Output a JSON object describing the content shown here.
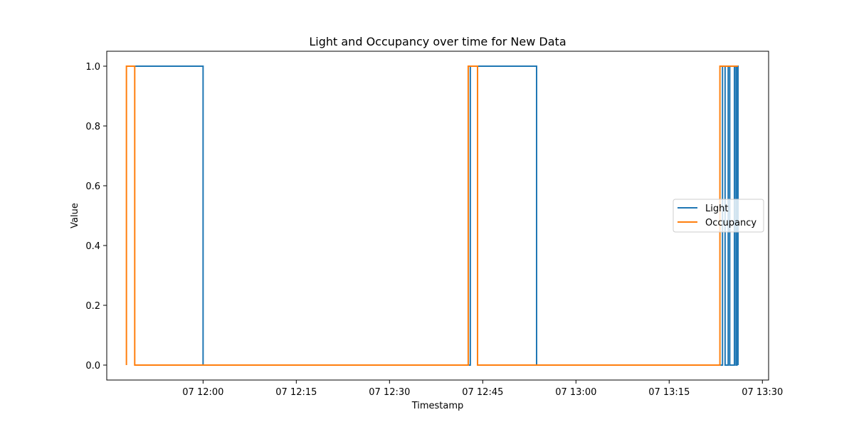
{
  "chart_data": {
    "type": "line",
    "title": "Light and Occupancy over time for New Data",
    "xlabel": "Timestamp",
    "ylabel": "Value",
    "xlim": [
      "2015-02-07 11:44:30",
      "2015-02-07 13:31:00"
    ],
    "ylim": [
      -0.05,
      1.05
    ],
    "x_ticks": [
      {
        "value": "2015-02-07 12:00:00",
        "label": "07 12:00"
      },
      {
        "value": "2015-02-07 12:15:00",
        "label": "07 12:15"
      },
      {
        "value": "2015-02-07 12:30:00",
        "label": "07 12:30"
      },
      {
        "value": "2015-02-07 12:45:00",
        "label": "07 12:45"
      },
      {
        "value": "2015-02-07 13:00:00",
        "label": "07 13:00"
      },
      {
        "value": "2015-02-07 13:15:00",
        "label": "07 13:15"
      },
      {
        "value": "2015-02-07 13:30:00",
        "label": "07 13:30"
      }
    ],
    "y_ticks": [
      0.0,
      0.2,
      0.4,
      0.6,
      0.8,
      1.0
    ],
    "y_tick_labels": [
      "0.0",
      "0.2",
      "0.4",
      "0.6",
      "0.8",
      "1.0"
    ],
    "grid": false,
    "legend": "center-right",
    "series": [
      {
        "name": "Light",
        "color": "#1f77b4",
        "points": [
          [
            "2015-02-07 11:49:00",
            1
          ],
          [
            "2015-02-07 12:00:00",
            1
          ],
          [
            "2015-02-07 12:00:00",
            0
          ],
          [
            "2015-02-07 12:43:00",
            0
          ],
          [
            "2015-02-07 12:43:00",
            1
          ],
          [
            "2015-02-07 12:53:40",
            1
          ],
          [
            "2015-02-07 12:53:40",
            0
          ],
          [
            "2015-02-07 13:23:35",
            0
          ],
          [
            "2015-02-07 13:23:35",
            1
          ],
          [
            "2015-02-07 13:24:00",
            1
          ],
          [
            "2015-02-07 13:24:00",
            0
          ],
          [
            "2015-02-07 13:24:30",
            0
          ],
          [
            "2015-02-07 13:24:30",
            1
          ],
          [
            "2015-02-07 13:24:45",
            1
          ],
          [
            "2015-02-07 13:24:45",
            0
          ],
          [
            "2015-02-07 13:25:30",
            0
          ],
          [
            "2015-02-07 13:25:30",
            1
          ],
          [
            "2015-02-07 13:25:45",
            1
          ],
          [
            "2015-02-07 13:25:45",
            0
          ],
          [
            "2015-02-07 13:25:55",
            0
          ],
          [
            "2015-02-07 13:25:55",
            1
          ],
          [
            "2015-02-07 13:26:05",
            1
          ],
          [
            "2015-02-07 13:26:05",
            0
          ]
        ]
      },
      {
        "name": "Occupancy",
        "color": "#ff7f0e",
        "points": [
          [
            "2015-02-07 11:47:40",
            0
          ],
          [
            "2015-02-07 11:47:40",
            1
          ],
          [
            "2015-02-07 11:49:00",
            1
          ],
          [
            "2015-02-07 11:49:00",
            0
          ],
          [
            "2015-02-07 12:42:40",
            0
          ],
          [
            "2015-02-07 12:42:40",
            1
          ],
          [
            "2015-02-07 12:44:10",
            1
          ],
          [
            "2015-02-07 12:44:10",
            0
          ],
          [
            "2015-02-07 13:23:10",
            0
          ],
          [
            "2015-02-07 13:23:10",
            1
          ],
          [
            "2015-02-07 13:26:05",
            1
          ]
        ]
      }
    ]
  }
}
